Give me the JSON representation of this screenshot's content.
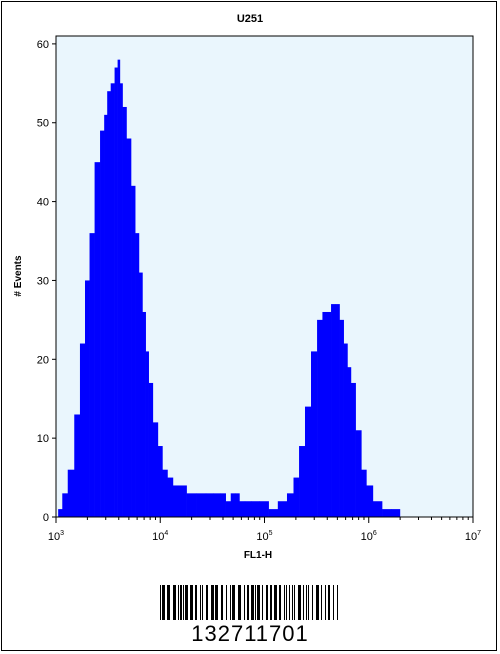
{
  "chart_data": {
    "type": "area",
    "title": "U251",
    "xlabel": "FL1-H",
    "ylabel": "# Events",
    "x_scale": "log",
    "xlim": [
      1000,
      10000000
    ],
    "ylim": [
      0,
      61
    ],
    "x_ticks": [
      {
        "base": "10",
        "exp": "3",
        "value": 1000
      },
      {
        "base": "10",
        "exp": "4",
        "value": 10000
      },
      {
        "base": "10",
        "exp": "5",
        "value": 100000
      },
      {
        "base": "10",
        "exp": "6",
        "value": 1000000
      },
      {
        "base": "10",
        "exp": "7",
        "value": 10000000
      }
    ],
    "y_ticks": [
      "0",
      "10",
      "20",
      "30",
      "40",
      "50",
      "60"
    ],
    "fill_color": "#0000ff",
    "plot_background": "#eaf6fd",
    "grid": false,
    "legend": "none",
    "series": [
      {
        "x": [
          1000,
          1100,
          1200,
          1400,
          1600,
          1800,
          2000,
          2200,
          2500,
          2800,
          3000,
          3200,
          3500,
          3800,
          4000,
          4200,
          4500,
          5000,
          5500,
          6000,
          6500,
          7000,
          7500,
          8000,
          9000,
          10000,
          11000,
          12500,
          14000,
          16000,
          20000,
          25000,
          30000,
          35000,
          40000,
          45000,
          50000,
          55000,
          60000,
          70000,
          80000,
          100000,
          120000,
          150000,
          180000,
          200000,
          230000,
          260000,
          300000,
          340000,
          380000,
          420000,
          450000,
          500000,
          550000,
          600000,
          650000,
          700000,
          800000,
          900000,
          1000000,
          1200000,
          1500000,
          1800000,
          2200000,
          3000000,
          5000000,
          10000000
        ],
        "values": [
          0,
          1,
          3,
          6,
          13,
          22,
          30,
          36,
          45,
          49,
          51,
          54,
          55,
          57,
          58,
          55,
          52,
          48,
          42,
          36,
          31,
          26,
          21,
          17,
          12,
          9,
          6,
          5,
          4,
          4,
          3,
          3,
          3,
          3,
          3,
          2,
          3,
          3,
          2,
          2,
          2,
          2,
          1,
          2,
          3,
          5,
          9,
          14,
          21,
          25,
          26,
          26,
          27,
          27,
          25,
          22,
          19,
          17,
          11,
          6,
          4,
          2,
          1,
          1,
          0,
          0,
          0,
          0
        ]
      }
    ]
  },
  "barcode": {
    "number": "132711701"
  }
}
